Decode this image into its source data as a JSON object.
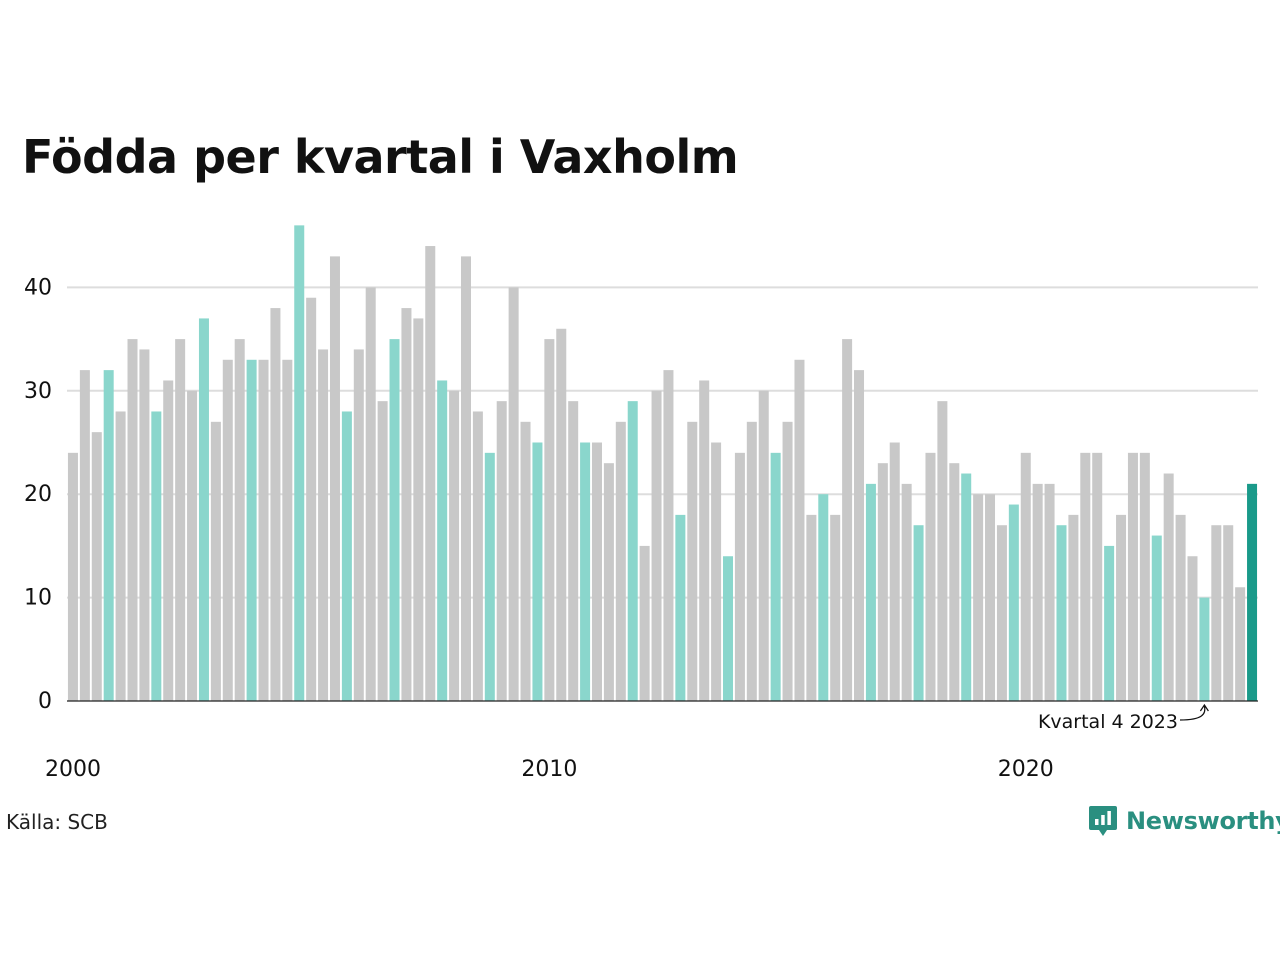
{
  "title": "Födda per kvartal i Vaxholm",
  "source": "Källa: SCB",
  "brand": "Newsworthy",
  "colors": {
    "bar_default": "#c8c8c8",
    "bar_q4": "#8ad6cc",
    "bar_latest": "#1a9a8a",
    "grid": "#dddddd",
    "axis": "#222222",
    "brand": "#2a8f80"
  },
  "chart_data": {
    "type": "bar",
    "title": "Födda per kvartal i Vaxholm",
    "xlabel": "",
    "ylabel": "",
    "ylim": [
      0,
      47
    ],
    "yticks": [
      0,
      10,
      20,
      30,
      40
    ],
    "grid": true,
    "start_year": 2000,
    "x_tick_labels": [
      "2000",
      "2010",
      "2020"
    ],
    "highlight_rule": "fourth quarter bars highlighted",
    "annotation": "Kvartal 4 2023",
    "values": [
      24,
      32,
      26,
      32,
      28,
      35,
      34,
      28,
      31,
      35,
      30,
      37,
      27,
      33,
      35,
      33,
      33,
      38,
      33,
      46,
      39,
      34,
      43,
      28,
      34,
      40,
      29,
      35,
      38,
      37,
      44,
      31,
      30,
      43,
      28,
      24,
      29,
      40,
      27,
      25,
      35,
      36,
      29,
      25,
      25,
      23,
      27,
      29,
      15,
      30,
      32,
      18,
      27,
      31,
      25,
      14,
      24,
      27,
      30,
      24,
      27,
      33,
      18,
      20,
      18,
      35,
      32,
      21,
      23,
      25,
      21,
      17,
      24,
      29,
      23,
      22,
      20,
      20,
      17,
      19,
      24,
      21,
      21,
      17,
      18,
      24,
      24,
      15,
      18,
      24,
      24,
      16,
      22,
      18,
      14,
      10,
      17,
      17,
      11,
      21
    ]
  }
}
